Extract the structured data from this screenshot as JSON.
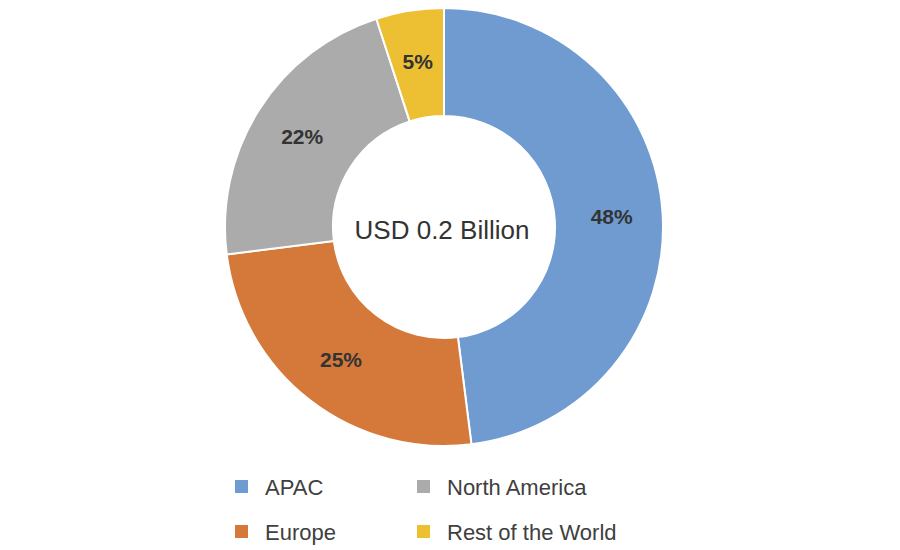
{
  "chart_data": {
    "type": "donut",
    "categories": [
      "APAC",
      "Europe",
      "North America",
      "Rest of the World"
    ],
    "values": [
      48,
      25,
      22,
      5
    ],
    "value_labels": [
      "48%",
      "25%",
      "22%",
      "5%"
    ],
    "colors": [
      "#6f9bd1",
      "#d5793a",
      "#ababab",
      "#edbf33"
    ],
    "annotations": [
      "USD 0.2 Billion"
    ],
    "data_labels": true,
    "legend": "bottom"
  }
}
